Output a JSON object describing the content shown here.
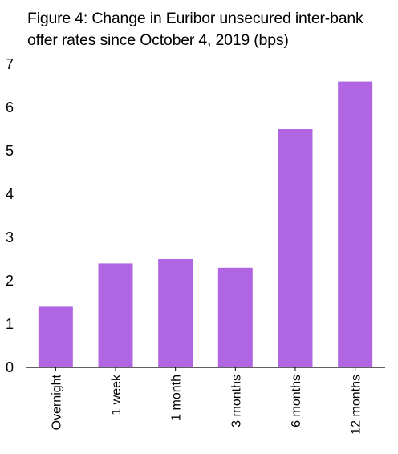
{
  "chart_data": {
    "type": "bar",
    "title_lines": [
      "Figure 4: Change in Euribor unsecured inter-bank",
      "offer rates since October 4, 2019 (bps)"
    ],
    "categories": [
      "Overnight",
      "1 week",
      "1 month",
      "3 months",
      "6 months",
      "12 months"
    ],
    "values": [
      1.4,
      2.4,
      2.5,
      2.3,
      5.5,
      6.6
    ],
    "ylim": [
      0,
      7
    ],
    "yticks": [
      0,
      1,
      2,
      3,
      4,
      5,
      6,
      7
    ],
    "xlabel": "",
    "ylabel": "",
    "grid": false,
    "bar_color": "#b065e3",
    "axis_color": "#000000"
  }
}
